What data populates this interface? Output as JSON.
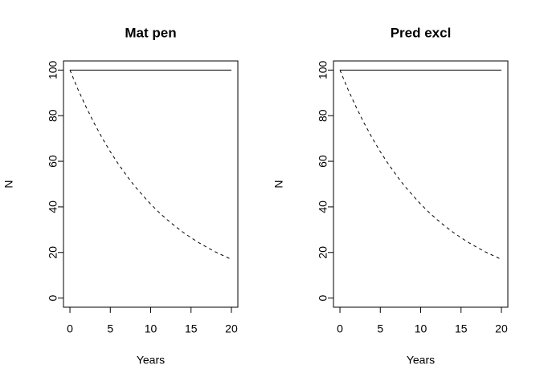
{
  "chart_data": [
    {
      "type": "line",
      "title": "Mat pen",
      "xlabel": "Years",
      "ylabel": "N",
      "x": [
        0,
        1,
        2,
        3,
        4,
        5,
        6,
        7,
        8,
        9,
        10,
        11,
        12,
        13,
        14,
        15,
        16,
        17,
        18,
        19,
        20
      ],
      "series": [
        {
          "color": "#000000",
          "linestyle": "solid",
          "values": [
            100,
            100,
            100,
            100,
            100,
            100,
            100,
            100,
            100,
            100,
            100,
            100,
            100,
            100,
            100,
            100,
            100,
            100,
            100,
            100,
            100
          ]
        },
        {
          "color": "#000000",
          "linestyle": "dashed",
          "values": [
            100,
            91.5,
            83.8,
            76.7,
            70.2,
            64.2,
            58.8,
            53.8,
            49.2,
            45.1,
            41.2,
            37.7,
            34.5,
            31.6,
            28.9,
            26.5,
            24.2,
            22.2,
            20.3,
            18.6,
            17.0
          ]
        }
      ],
      "xlim": [
        -0.8,
        20.8
      ],
      "xticks": [
        0,
        5,
        10,
        15,
        20
      ],
      "ylim": [
        -4,
        104
      ],
      "yticks": [
        0,
        20,
        40,
        60,
        80,
        100
      ],
      "grid": false
    },
    {
      "type": "line",
      "title": "Pred excl",
      "xlabel": "Years",
      "ylabel": "N",
      "x": [
        0,
        1,
        2,
        3,
        4,
        5,
        6,
        7,
        8,
        9,
        10,
        11,
        12,
        13,
        14,
        15,
        16,
        17,
        18,
        19,
        20
      ],
      "series": [
        {
          "color": "#000000",
          "linestyle": "solid",
          "values": [
            100,
            100,
            100,
            100,
            100,
            100,
            100,
            100,
            100,
            100,
            100,
            100,
            100,
            100,
            100,
            100,
            100,
            100,
            100,
            100,
            100
          ]
        },
        {
          "color": "#000000",
          "linestyle": "dashed",
          "values": [
            100,
            91.5,
            83.8,
            76.7,
            70.2,
            64.2,
            58.8,
            53.8,
            49.2,
            45.1,
            41.2,
            37.7,
            34.5,
            31.6,
            28.9,
            26.5,
            24.2,
            22.2,
            20.3,
            18.6,
            17.0
          ]
        }
      ],
      "xlim": [
        -0.8,
        20.8
      ],
      "xticks": [
        0,
        5,
        10,
        15,
        20
      ],
      "ylim": [
        -4,
        104
      ],
      "yticks": [
        0,
        20,
        40,
        60,
        80,
        100
      ],
      "grid": false
    }
  ]
}
